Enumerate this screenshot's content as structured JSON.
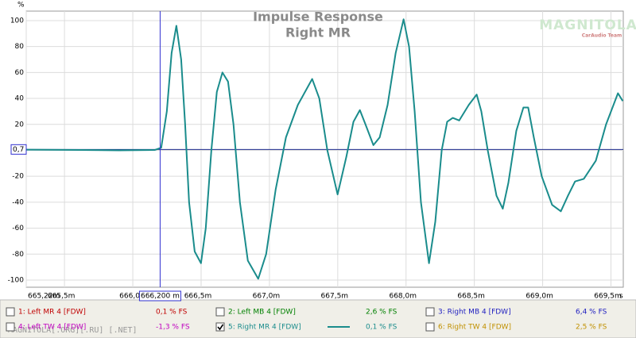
{
  "chart_data": {
    "type": "line",
    "title": "Impulse Response",
    "subtitle": "Right MR",
    "y_unit": "%",
    "x_unit": "s",
    "watermark": "MAGNITOLA",
    "watermark_sub": "CarAudio Team",
    "footer_text": "MAGNITOLA[.ORG][.RU] [.NET]",
    "xlim": [
      665.22,
      669.59
    ],
    "ylim": [
      -105.5,
      107.3
    ],
    "xticks": [
      {
        "value": 665.22,
        "label": "665,22m"
      },
      {
        "value": 665.5,
        "label": "665,5m"
      },
      {
        "value": 666.0,
        "label": "666,0"
      },
      {
        "value": 666.5,
        "label": "666,5m"
      },
      {
        "value": 667.0,
        "label": "667,0m"
      },
      {
        "value": 667.5,
        "label": "667,5m"
      },
      {
        "value": 668.0,
        "label": "668,0m"
      },
      {
        "value": 668.5,
        "label": "668,5m"
      },
      {
        "value": 669.0,
        "label": "669,0m"
      },
      {
        "value": 669.5,
        "label": "669,5m"
      }
    ],
    "yticks": [
      100,
      80,
      60,
      40,
      20,
      0,
      -20,
      -40,
      -60,
      -80,
      -100
    ],
    "grid": true,
    "cursor": {
      "x": 666.2,
      "x_label": "666,200 m",
      "y": 0.7,
      "y_label": "0,7"
    },
    "x": [
      665.22,
      665.61,
      665.9,
      666.162,
      666.208,
      666.249,
      666.284,
      666.319,
      666.354,
      666.383,
      666.412,
      666.453,
      666.499,
      666.534,
      666.575,
      666.615,
      666.656,
      666.697,
      666.737,
      666.784,
      666.842,
      666.918,
      666.976,
      667.046,
      667.121,
      667.208,
      667.313,
      667.365,
      667.424,
      667.499,
      667.563,
      667.615,
      667.662,
      667.703,
      667.761,
      667.807,
      667.865,
      667.924,
      667.982,
      668.022,
      668.063,
      668.109,
      668.168,
      668.214,
      668.261,
      668.301,
      668.342,
      668.389,
      668.459,
      668.517,
      668.551,
      668.598,
      668.662,
      668.708,
      668.749,
      668.807,
      668.859,
      668.894,
      668.935,
      668.993,
      669.069,
      669.133,
      669.185,
      669.237,
      669.301,
      669.389,
      669.464,
      669.551,
      669.586
    ],
    "series": [
      {
        "color": "#1a8c8c",
        "values": [
          0.5,
          0.3,
          0,
          0.3,
          2,
          30,
          75,
          96,
          70,
          20,
          -40,
          -78,
          -87,
          -60,
          0,
          45,
          60,
          53,
          20,
          -40,
          -85,
          -99,
          -80,
          -30,
          10,
          35,
          55,
          40,
          0,
          -34,
          -5,
          22,
          31,
          20,
          4,
          10,
          35,
          75,
          101,
          80,
          30,
          -40,
          -87,
          -55,
          0,
          22,
          25,
          23,
          35,
          43,
          30,
          0,
          -35,
          -45,
          -25,
          15,
          33,
          33,
          10,
          -20,
          -42,
          -47,
          -35,
          -24,
          -22,
          -8,
          20,
          44,
          38
        ]
      }
    ],
    "legend": [
      {
        "name": "1: Left MR 4 [FDW]",
        "value": "0,1 % FS",
        "color": "#c00000",
        "checked": false
      },
      {
        "name": "2: Left MB 4 [FDW]",
        "value": "2,6 % FS",
        "color": "#008000",
        "checked": false
      },
      {
        "name": "3: Right MB 4 [FDW]",
        "value": "6,4 % FS",
        "color": "#2020c0",
        "checked": false
      },
      {
        "name": "4: Left TW 4 [FDW]",
        "value": "-1,3 % FS",
        "color": "#c000c0",
        "checked": false
      },
      {
        "name": "5: Right MR 4 [FDW]",
        "value": "0,1 % FS",
        "color": "#1a8c8c",
        "checked": true
      },
      {
        "name": "6: Right TW 4 [FDW]",
        "value": "2,5 % FS",
        "color": "#c09000",
        "checked": false
      }
    ]
  }
}
